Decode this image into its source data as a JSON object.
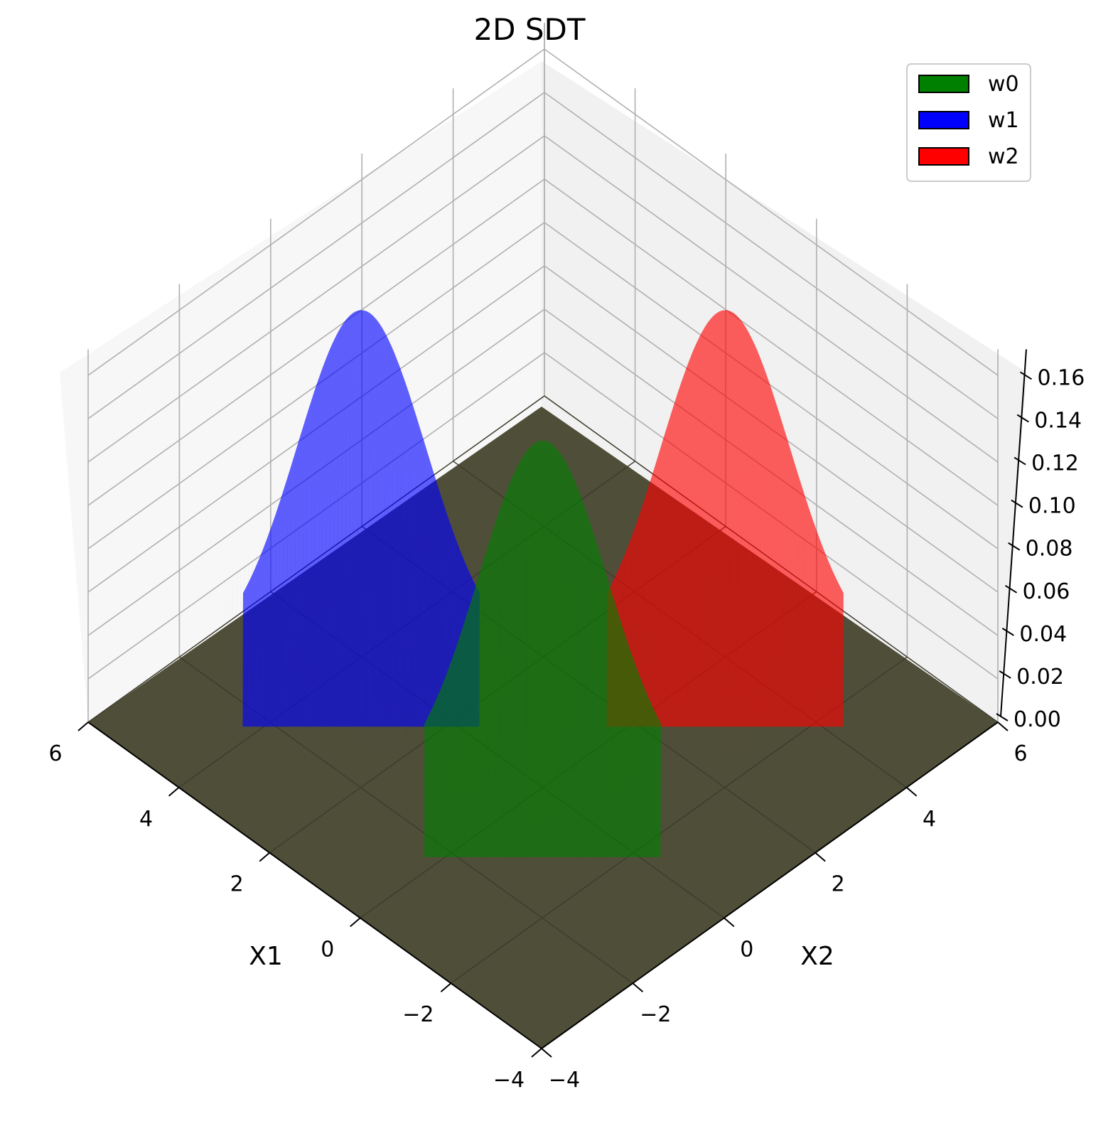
{
  "chart_data": {
    "type": "surface3d",
    "title": "2D SDT",
    "xlabel": "X1",
    "ylabel": "X2",
    "zlabel": "",
    "xlim": [
      -4,
      6
    ],
    "ylim": [
      -4,
      6
    ],
    "zlim": [
      0,
      0.16
    ],
    "x_ticks": [
      "−4",
      "−2",
      "0",
      "2",
      "4",
      "6"
    ],
    "y_ticks": [
      "−4",
      "−2",
      "0",
      "2",
      "4",
      "6"
    ],
    "z_ticks": [
      "0.00",
      "0.02",
      "0.04",
      "0.06",
      "0.08",
      "0.10",
      "0.12",
      "0.14",
      "0.16"
    ],
    "grid": true,
    "legend_position": "top-right",
    "series": [
      {
        "name": "w0",
        "color": "#008000",
        "mean": [
          0,
          0
        ],
        "sigma": 1,
        "peak": 0.16
      },
      {
        "name": "w1",
        "color": "#0000ff",
        "mean": [
          4,
          0
        ],
        "sigma": 1,
        "peak": 0.16
      },
      {
        "name": "w2",
        "color": "#ff0000",
        "mean": [
          0,
          4
        ],
        "sigma": 1,
        "peak": 0.16
      }
    ]
  }
}
